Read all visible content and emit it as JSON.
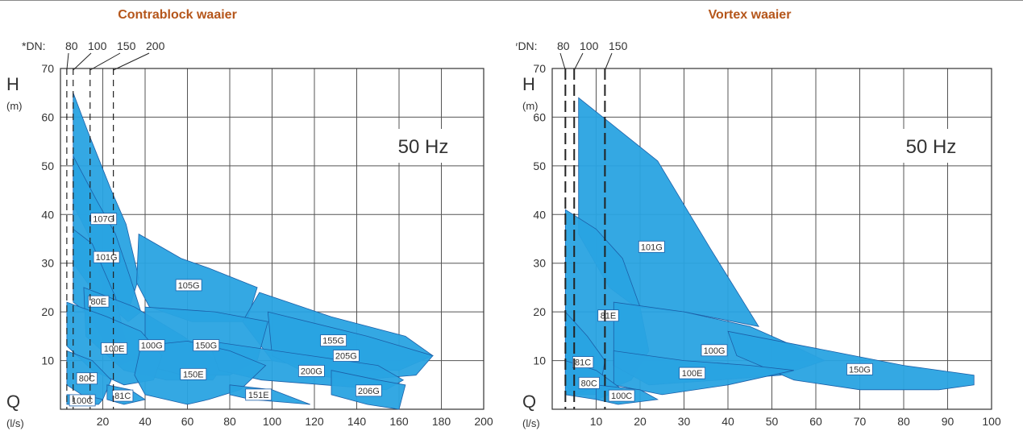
{
  "charts": [
    {
      "title": "Contrablock waaier"
    },
    {
      "title": "Vortex waaier"
    }
  ],
  "colors": {
    "fill": "#29a3e1",
    "stroke": "#1b5fa8",
    "title": "#b5561b"
  },
  "chart_data": [
    {
      "type": "area",
      "title": "Contrablock waaier",
      "frequency_label": "50 Hz",
      "ylabel_symbol": "H",
      "ylabel_unit": "(m)",
      "xlabel_symbol": "Q",
      "xlabel_unit": "(l/s)",
      "xlim": [
        0,
        200
      ],
      "ylim": [
        0,
        70
      ],
      "xticks": [
        20,
        40,
        60,
        80,
        100,
        120,
        140,
        160,
        180,
        200
      ],
      "yticks": [
        10,
        20,
        30,
        40,
        50,
        60,
        70
      ],
      "grid": true,
      "dn_prefix": "*DN:",
      "dn_lines": [
        {
          "label": "80",
          "q": 3
        },
        {
          "label": "100",
          "q": 6
        },
        {
          "label": "150",
          "q": 14
        },
        {
          "label": "200",
          "q": 25
        }
      ],
      "regions": [
        {
          "name": "107G",
          "points": [
            [
              6,
              65
            ],
            [
              13,
              57
            ],
            [
              24,
              45
            ],
            [
              31,
              38
            ],
            [
              37,
              27
            ],
            [
              32,
              20
            ],
            [
              22,
              22
            ],
            [
              13,
              36
            ],
            [
              6,
              42
            ]
          ]
        },
        {
          "name": "101G",
          "points": [
            [
              6,
              52
            ],
            [
              17,
              43
            ],
            [
              26,
              36
            ],
            [
              33,
              27
            ],
            [
              38,
              20
            ],
            [
              32,
              18
            ],
            [
              16,
              24
            ],
            [
              6,
              30
            ]
          ]
        },
        {
          "name": "80E",
          "points": [
            [
              6,
              37
            ],
            [
              15,
              34
            ],
            [
              26,
              23
            ],
            [
              33,
              10
            ],
            [
              28,
              9
            ],
            [
              12,
              20
            ],
            [
              6,
              22
            ]
          ]
        },
        {
          "name": "105G",
          "points": [
            [
              37,
              36
            ],
            [
              57,
              31
            ],
            [
              70,
              29
            ],
            [
              93,
              25
            ],
            [
              88,
              18
            ],
            [
              62,
              18
            ],
            [
              42,
              21
            ],
            [
              36,
              26
            ]
          ]
        },
        {
          "name": "100G",
          "points": [
            [
              11,
              25
            ],
            [
              35,
              21
            ],
            [
              58,
              15
            ],
            [
              77,
              9
            ],
            [
              72,
              6
            ],
            [
              50,
              6
            ],
            [
              30,
              8
            ],
            [
              12,
              15
            ]
          ]
        },
        {
          "name": "155G",
          "points": [
            [
              94,
              24
            ],
            [
              128,
              19
            ],
            [
              163,
              15
            ],
            [
              176,
              11
            ],
            [
              160,
              8
            ],
            [
              125,
              8
            ],
            [
              100,
              10
            ],
            [
              86,
              18
            ]
          ]
        },
        {
          "name": "150G",
          "points": [
            [
              40,
              21
            ],
            [
              73,
              20
            ],
            [
              98,
              18
            ],
            [
              93,
              10
            ],
            [
              80,
              7
            ],
            [
              58,
              7
            ],
            [
              40,
              9
            ]
          ]
        },
        {
          "name": "100E",
          "points": [
            [
              3,
              22
            ],
            [
              22,
              19
            ],
            [
              38,
              16
            ],
            [
              48,
              11
            ],
            [
              44,
              6
            ],
            [
              30,
              5
            ],
            [
              15,
              8
            ],
            [
              3,
              13
            ]
          ]
        },
        {
          "name": "205G",
          "points": [
            [
              98,
              20
            ],
            [
              145,
              15
            ],
            [
              176,
              11
            ],
            [
              168,
              7
            ],
            [
              140,
              6
            ],
            [
              118,
              7
            ],
            [
              100,
              11
            ]
          ]
        },
        {
          "name": "200G",
          "points": [
            [
              70,
              14
            ],
            [
              118,
              11
            ],
            [
              150,
              9
            ],
            [
              162,
              6
            ],
            [
              154,
              4
            ],
            [
              125,
              5
            ],
            [
              95,
              6
            ],
            [
              75,
              8
            ]
          ]
        },
        {
          "name": "150E",
          "points": [
            [
              38,
              13
            ],
            [
              60,
              14
            ],
            [
              80,
              12
            ],
            [
              97,
              9
            ],
            [
              85,
              4
            ],
            [
              70,
              2
            ],
            [
              60,
              1
            ],
            [
              40,
              3
            ],
            [
              35,
              7
            ]
          ]
        },
        {
          "name": "206G",
          "points": [
            [
              128,
              8
            ],
            [
              150,
              6
            ],
            [
              163,
              5
            ],
            [
              160,
              0
            ],
            [
              145,
              1
            ],
            [
              128,
              3
            ]
          ]
        },
        {
          "name": "151E",
          "points": [
            [
              80,
              5
            ],
            [
              100,
              4
            ],
            [
              118,
              1
            ],
            [
              90,
              2
            ],
            [
              80,
              3
            ]
          ]
        },
        {
          "name": "80C",
          "points": [
            [
              3,
              12
            ],
            [
              15,
              10
            ],
            [
              24,
              6
            ],
            [
              20,
              2
            ],
            [
              10,
              3
            ],
            [
              3,
              5
            ]
          ]
        },
        {
          "name": "81C",
          "points": [
            [
              22,
              5
            ],
            [
              33,
              4
            ],
            [
              40,
              2
            ],
            [
              30,
              1
            ],
            [
              22,
              2
            ]
          ]
        },
        {
          "name": "100C",
          "points": [
            [
              3,
              3
            ],
            [
              10,
              3
            ],
            [
              20,
              2
            ],
            [
              18,
              1
            ],
            [
              8,
              1
            ],
            [
              3,
              1
            ]
          ]
        }
      ],
      "label_boxes": [
        "107G",
        "101G",
        "80E",
        "105G",
        "100G",
        "155G",
        "150G",
        "100E",
        "205G",
        "200G",
        "150E",
        "206G",
        "151E",
        "80C",
        "81C",
        "100C"
      ]
    },
    {
      "type": "area",
      "title": "Vortex waaier",
      "frequency_label": "50 Hz",
      "ylabel_symbol": "H",
      "ylabel_unit": "(m)",
      "xlabel_symbol": "Q",
      "xlabel_unit": "(l/s)",
      "xlim": [
        0,
        100
      ],
      "ylim": [
        0,
        70
      ],
      "xticks": [
        10,
        20,
        30,
        40,
        50,
        60,
        70,
        80,
        90,
        100
      ],
      "yticks": [
        10,
        20,
        30,
        40,
        50,
        60,
        70
      ],
      "grid": true,
      "dn_prefix": "*DN:",
      "dn_lines": [
        {
          "label": "80",
          "q": 3
        },
        {
          "label": "100",
          "q": 5
        },
        {
          "label": "150",
          "q": 12
        }
      ],
      "regions": [
        {
          "name": "101G",
          "points": [
            [
              6,
              64
            ],
            [
              24,
              51
            ],
            [
              36,
              33
            ],
            [
              47,
              17
            ],
            [
              30,
              20
            ],
            [
              19,
              21
            ],
            [
              13,
              25
            ],
            [
              6,
              36
            ]
          ]
        },
        {
          "name": "81E",
          "points": [
            [
              3,
              41
            ],
            [
              10,
              37
            ],
            [
              16,
              31
            ],
            [
              20,
              21
            ],
            [
              22,
              12
            ],
            [
              18,
              6
            ],
            [
              10,
              3
            ],
            [
              3,
              3
            ]
          ]
        },
        {
          "name": "100G",
          "points": [
            [
              14,
              22
            ],
            [
              30,
              20
            ],
            [
              45,
              17
            ],
            [
              55,
              13
            ],
            [
              62,
              10
            ],
            [
              52,
              7
            ],
            [
              38,
              6
            ],
            [
              22,
              5
            ],
            [
              14,
              9
            ]
          ]
        },
        {
          "name": "150G",
          "points": [
            [
              40,
              16
            ],
            [
              63,
              12
            ],
            [
              80,
              9
            ],
            [
              96,
              7
            ],
            [
              96,
              5
            ],
            [
              88,
              4
            ],
            [
              70,
              4
            ],
            [
              55,
              6
            ],
            [
              42,
              11
            ]
          ]
        },
        {
          "name": "100E",
          "points": [
            [
              14,
              12
            ],
            [
              30,
              10
            ],
            [
              45,
              9
            ],
            [
              55,
              8
            ],
            [
              40,
              5
            ],
            [
              25,
              3
            ],
            [
              14,
              5
            ]
          ]
        },
        {
          "name": "81C",
          "points": [
            [
              3,
              20
            ],
            [
              8,
              15
            ],
            [
              12,
              10
            ],
            [
              11,
              5
            ],
            [
              5,
              3
            ],
            [
              3,
              5
            ]
          ]
        },
        {
          "name": "80C",
          "points": [
            [
              3,
              10
            ],
            [
              10,
              8
            ],
            [
              16,
              4
            ],
            [
              10,
              2
            ],
            [
              3,
              3
            ]
          ]
        },
        {
          "name": "100C",
          "points": [
            [
              10,
              5
            ],
            [
              20,
              4
            ],
            [
              24,
              2
            ],
            [
              15,
              1
            ],
            [
              10,
              2
            ]
          ]
        }
      ],
      "label_boxes": [
        "101G",
        "81E",
        "100G",
        "150G",
        "100E",
        "81C",
        "80C",
        "100C"
      ]
    }
  ]
}
